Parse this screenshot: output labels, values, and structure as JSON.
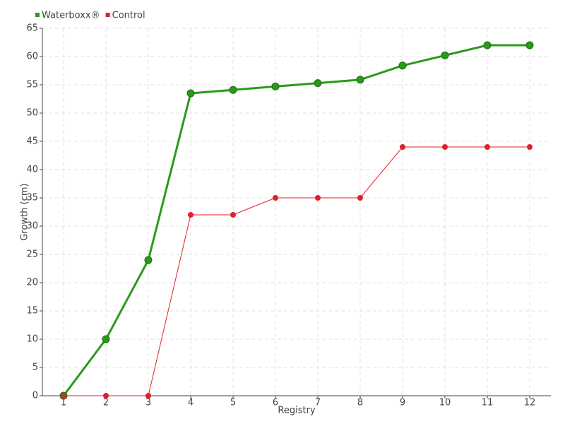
{
  "chart_data": {
    "type": "line",
    "x": [
      1,
      2,
      3,
      4,
      5,
      6,
      7,
      8,
      9,
      10,
      11,
      12
    ],
    "xlim": [
      0.5,
      12.5
    ],
    "xticks": [
      1,
      2,
      3,
      4,
      5,
      6,
      7,
      8,
      9,
      10,
      11,
      12
    ],
    "ylim": [
      0,
      65
    ],
    "yticks": [
      0,
      5,
      10,
      15,
      20,
      25,
      30,
      35,
      40,
      45,
      50,
      55,
      60,
      65
    ],
    "xlabel": "Registry",
    "ylabel": "Growth (cm)",
    "grid": true,
    "legend": "top-left",
    "series": [
      {
        "name": "Waterboxx®",
        "color": "#2a9a1a",
        "values": [
          0,
          10,
          24,
          53.5,
          54.1,
          54.7,
          55.3,
          55.9,
          58.4,
          60.2,
          62,
          62
        ]
      },
      {
        "name": "Control",
        "color": "#e0202a",
        "values": [
          0,
          0,
          0,
          32,
          32,
          35,
          35,
          35,
          44,
          44,
          44,
          44
        ]
      }
    ]
  }
}
